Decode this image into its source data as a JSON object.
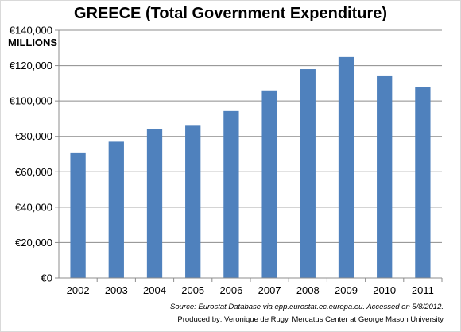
{
  "chart_data": {
    "type": "bar",
    "title": "GREECE (Total Government Expenditure)",
    "ylabel": "MILLIONS",
    "xlabel": "",
    "categories": [
      "2002",
      "2003",
      "2004",
      "2005",
      "2006",
      "2007",
      "2008",
      "2009",
      "2010",
      "2011"
    ],
    "values": [
      70500,
      77000,
      84300,
      86000,
      94300,
      106000,
      118000,
      124800,
      114000,
      107800
    ],
    "ylim": [
      0,
      140000
    ],
    "yticks": [
      0,
      20000,
      40000,
      60000,
      80000,
      100000,
      120000,
      140000
    ],
    "ytick_labels": [
      "€0",
      "€20,000",
      "€40,000",
      "€60,000",
      "€80,000",
      "€100,000",
      "€120,000",
      "€140,000"
    ],
    "grid": true,
    "bar_color": "#4f81bd",
    "grid_color": "#8c8c8c"
  },
  "source": {
    "line1": "Source: Eurostat Database via epp.eurostat.ec.europa.eu. Accessed on 5/8/2012.",
    "line2": "Produced by: Veronique de Rugy, Mercatus Center at George Mason University"
  }
}
